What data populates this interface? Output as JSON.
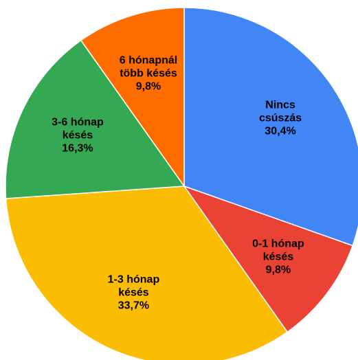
{
  "chart_data": {
    "type": "pie",
    "categories": [
      "Nincs csúszás",
      "0-1 hónap késés",
      "1-3 hónap késés",
      "3-6 hónap késés",
      "6 hónapnál több késés"
    ],
    "values": [
      30.4,
      9.8,
      33.7,
      16.3,
      9.8
    ],
    "value_labels": [
      "30,4%",
      "9,8%",
      "33,7%",
      "16,3%",
      "9,8%"
    ],
    "colors": [
      "#4285f4",
      "#ea4335",
      "#fbbc04",
      "#34a853",
      "#ff6d01"
    ]
  }
}
